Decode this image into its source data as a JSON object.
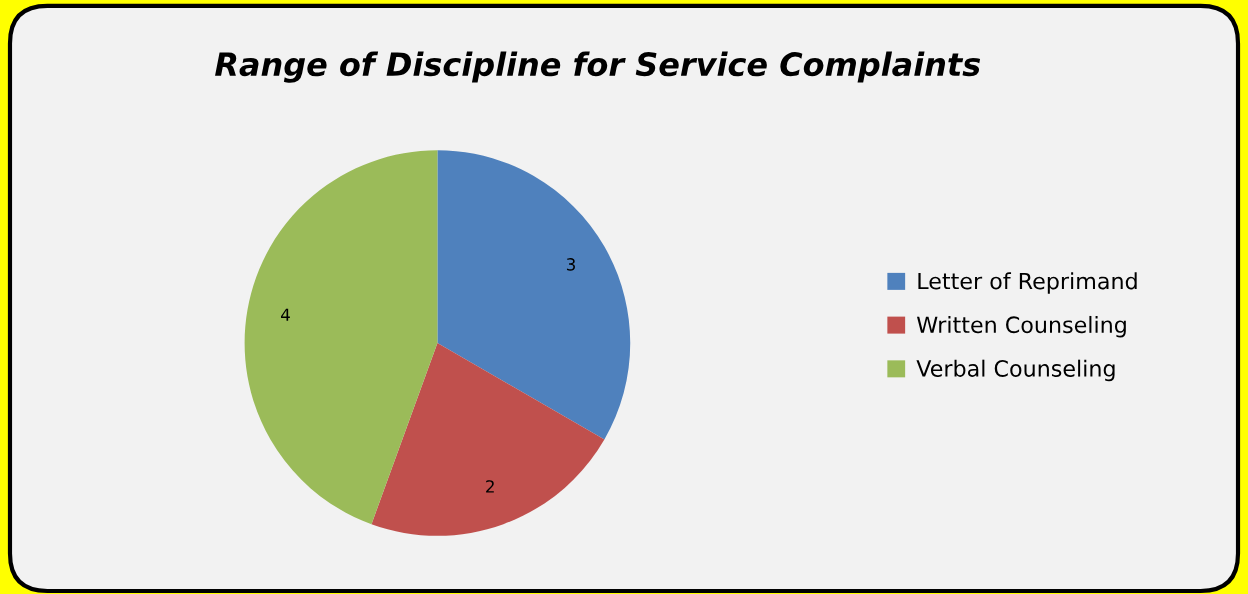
{
  "chart_data": {
    "type": "pie",
    "title": "Range of Discipline for Service Complaints",
    "categories": [
      "Letter of Reprimand",
      "Written Counseling",
      "Verbal Counseling"
    ],
    "values": [
      3,
      2,
      4
    ],
    "colors": [
      "#4f81bd",
      "#c0504d",
      "#9bbb59"
    ],
    "data_labels": true,
    "legend": "right"
  }
}
